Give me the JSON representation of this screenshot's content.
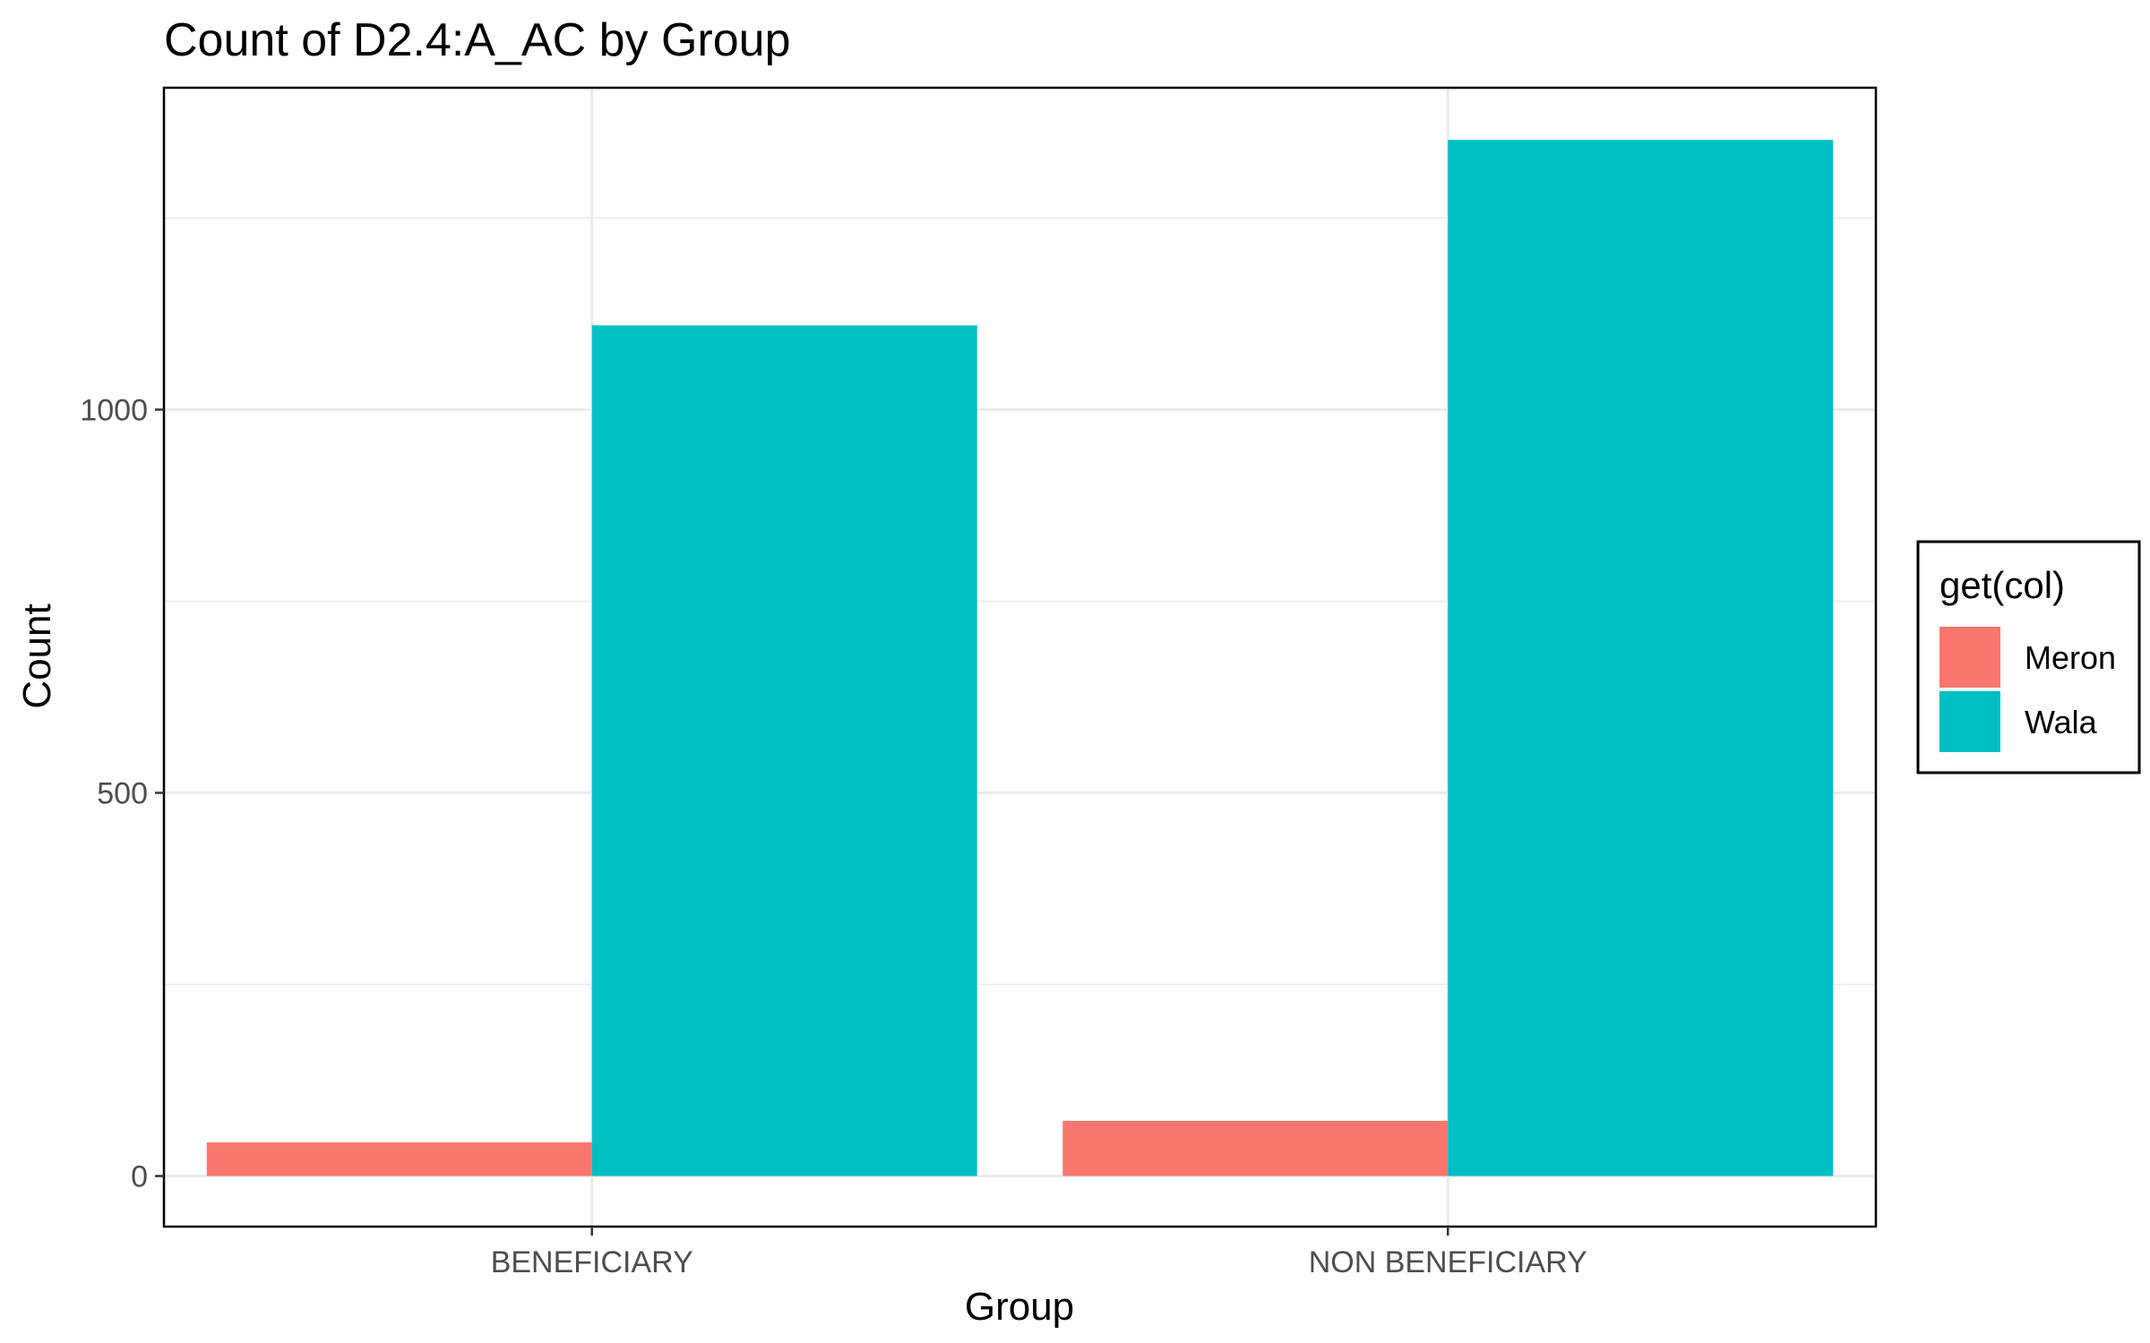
{
  "chart_data": {
    "type": "bar",
    "title": "Count of D2.4:A_AC by Group",
    "xlabel": "Group",
    "ylabel": "Count",
    "categories": [
      "BENEFICIARY",
      "NON BENEFICIARY"
    ],
    "series": [
      {
        "name": "Meron",
        "color": "#F8766D",
        "values": [
          44,
          72
        ]
      },
      {
        "name": "Wala",
        "color": "#00BFC4",
        "values": [
          1110,
          1352
        ]
      }
    ],
    "ylim": [
      -66,
      1420
    ],
    "y_ticks": [
      0,
      500,
      1000
    ],
    "y_tick_labels": [
      "0",
      "500",
      "1000"
    ],
    "y_minor_ticks": [
      250,
      750,
      1250
    ],
    "grid": true,
    "legend": {
      "title": "get(col)",
      "position": "right"
    }
  }
}
